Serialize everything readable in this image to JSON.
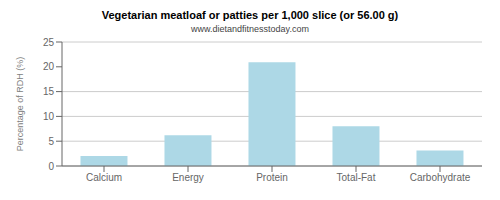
{
  "chart_data": {
    "type": "bar",
    "title": "Vegetarian meatloaf or patties per 1,000 slice (or 56.00 g)",
    "subtitle": "www.dietandfitnesstoday.com",
    "categories": [
      "Calcium",
      "Energy",
      "Protein",
      "Total-Fat",
      "Carbohydrate"
    ],
    "values": [
      2.0,
      6.2,
      20.9,
      8.0,
      3.1
    ],
    "color": "#add8e6",
    "ylabel": "Percentage of RDH (%)",
    "ylim": [
      0,
      25
    ],
    "yticks": [
      0,
      5,
      10,
      15,
      20,
      25
    ],
    "grid": true
  }
}
